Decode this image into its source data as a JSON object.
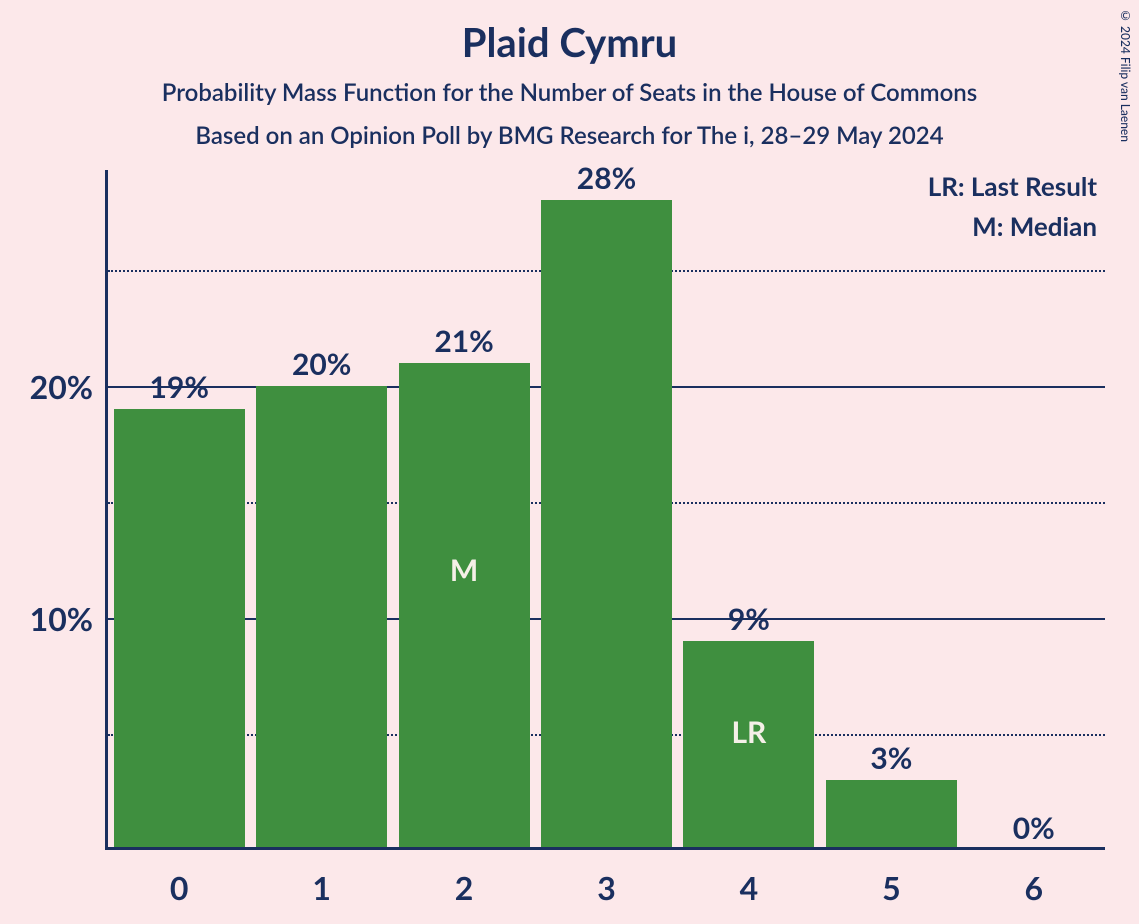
{
  "chart": {
    "type": "bar",
    "title": "Plaid Cymru",
    "title_fontsize": 40,
    "subtitle1": "Probability Mass Function for the Number of Seats in the House of Commons",
    "subtitle2": "Based on an Opinion Poll by BMG Research for The i, 28–29 May 2024",
    "subtitle_fontsize": 24,
    "copyright": "© 2024 Filip van Laenen",
    "background_color": "#fce8ea",
    "text_color": "#1a2f5f",
    "bar_color": "#3f8f3f",
    "bar_text_color": "#f5f0e8",
    "categories": [
      "0",
      "1",
      "2",
      "3",
      "4",
      "5",
      "6"
    ],
    "values": [
      19,
      20,
      21,
      28,
      9,
      3,
      0
    ],
    "value_labels": [
      "19%",
      "20%",
      "21%",
      "28%",
      "9%",
      "3%",
      "0%"
    ],
    "markers": {
      "2": "M",
      "4": "LR"
    },
    "y_ticks_major": [
      10,
      20
    ],
    "y_tick_labels": [
      "10%",
      "20%"
    ],
    "y_ticks_minor": [
      5,
      15,
      25
    ],
    "ylim_max": 28,
    "legend": {
      "lr": "LR: Last Result",
      "m": "M: Median"
    },
    "value_fontsize": 30,
    "axis_label_fontsize": 32,
    "marker_fontsize": 30,
    "legend_fontsize": 26,
    "bar_width_ratio": 0.92
  }
}
